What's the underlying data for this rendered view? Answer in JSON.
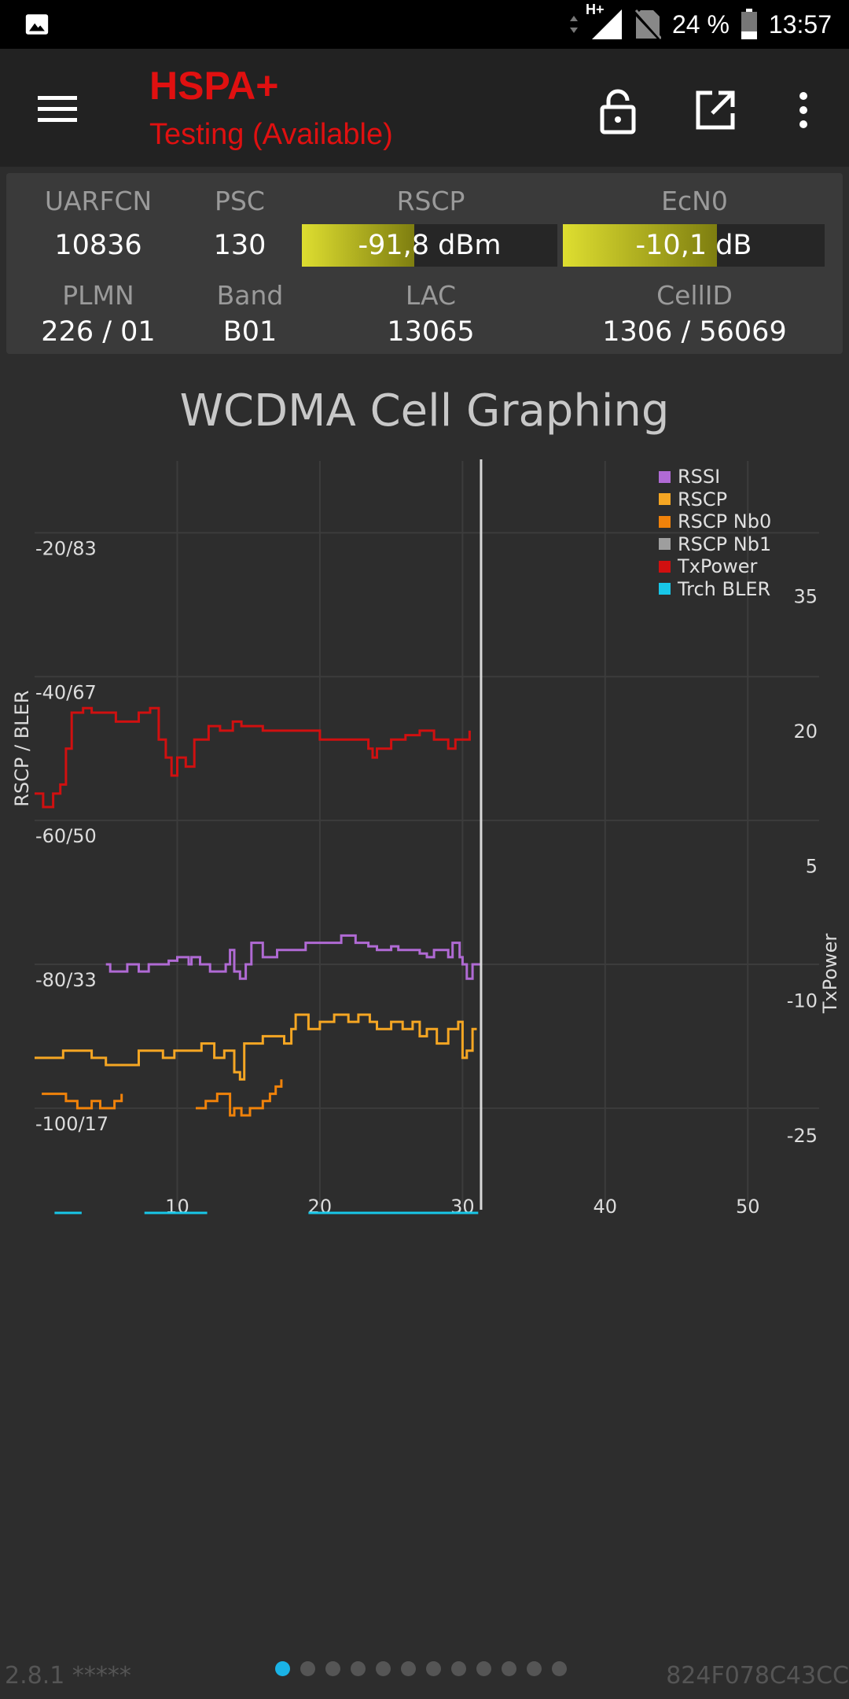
{
  "status_bar": {
    "network_type": "H+",
    "battery_percent": "24 %",
    "time": "13:57",
    "icons": [
      "gallery-icon",
      "data-arrows-icon",
      "signal-icon",
      "no-sim-icon",
      "battery-icon"
    ]
  },
  "toolbar": {
    "tech": "HSPA+",
    "status": "Testing (Available)",
    "icons": [
      "menu-icon",
      "lock-icon",
      "open-external-icon",
      "more-vert-icon"
    ],
    "accent_color": "#e01010"
  },
  "cell_info": {
    "uarfcn_label": "UARFCN",
    "uarfcn_value": "10836",
    "psc_label": "PSC",
    "psc_value": "130",
    "rscp_label": "RSCP",
    "rscp_value": "-91,8 dBm",
    "rscp_fill": 0.44,
    "ecn0_label": "EcN0",
    "ecn0_value": "-10,1 dB",
    "ecn0_fill": 0.59,
    "plmn_label": "PLMN",
    "plmn_value": "226 / 01",
    "band_label": "Band",
    "band_value": "B01",
    "lac_label": "LAC",
    "lac_value": "13065",
    "cellid_label": "CellID",
    "cellid_value": "1306 / 56069"
  },
  "chart": {
    "title": "WCDMA Cell Graphing",
    "left_axis_label": "RSCP / BLER",
    "right_axis_label": "TxPower"
  },
  "chart_data": {
    "type": "line",
    "title": "WCDMA Cell Graphing",
    "ylabel": "RSCP / BLER",
    "y2label": "TxPower",
    "xlim": [
      0,
      55
    ],
    "ylim": [
      -115,
      -10
    ],
    "y2lim": [
      -34,
      50
    ],
    "grid": true,
    "legend_position": "top-right",
    "x_ticks": [
      "10",
      "20",
      "30",
      "40",
      "50"
    ],
    "left_ticks": [
      "-20/83",
      "-40/67",
      "-60/50",
      "-80/33",
      "-100/17"
    ],
    "left_tick_values": [
      -20,
      -40,
      -60,
      -80,
      -100
    ],
    "right_ticks": [
      "-25",
      "-10",
      "5",
      "20",
      "35"
    ],
    "right_tick_values": [
      -25,
      -10,
      5,
      20,
      35
    ],
    "cursor_x": 31.3,
    "series": [
      {
        "name": "RSSI",
        "color": "#b06ad4",
        "axis": "left",
        "points": [
          [
            5,
            -80
          ],
          [
            5.3,
            -81
          ],
          [
            6.5,
            -80
          ],
          [
            7.3,
            -81
          ],
          [
            8,
            -80
          ],
          [
            9,
            -80
          ],
          [
            9.4,
            -79.5
          ],
          [
            10,
            -79
          ],
          [
            10.8,
            -80
          ],
          [
            11,
            -79
          ],
          [
            11.6,
            -80
          ],
          [
            12.3,
            -81
          ],
          [
            13.4,
            -80
          ],
          [
            13.7,
            -78
          ],
          [
            14,
            -81
          ],
          [
            14.4,
            -82
          ],
          [
            14.8,
            -80
          ],
          [
            15.2,
            -77
          ],
          [
            16,
            -79
          ],
          [
            17,
            -78
          ],
          [
            18,
            -78
          ],
          [
            19,
            -77
          ],
          [
            20,
            -77
          ],
          [
            21.5,
            -76
          ],
          [
            22.5,
            -77
          ],
          [
            23,
            -77
          ],
          [
            23.4,
            -77.5
          ],
          [
            24,
            -78
          ],
          [
            25,
            -77.5
          ],
          [
            25.5,
            -78
          ],
          [
            26.5,
            -78
          ],
          [
            27,
            -78.5
          ],
          [
            27.5,
            -79
          ],
          [
            28,
            -78
          ],
          [
            29,
            -79
          ],
          [
            29.3,
            -77
          ],
          [
            29.8,
            -79
          ],
          [
            30,
            -80
          ],
          [
            30.3,
            -82
          ],
          [
            30.7,
            -80
          ],
          [
            31.3,
            -80
          ]
        ]
      },
      {
        "name": "RSCP",
        "color": "#f5a623",
        "axis": "left",
        "points": [
          [
            0,
            -93
          ],
          [
            2,
            -92
          ],
          [
            4,
            -93
          ],
          [
            5,
            -94
          ],
          [
            6.6,
            -94
          ],
          [
            7.3,
            -92
          ],
          [
            9,
            -93
          ],
          [
            9.8,
            -92
          ],
          [
            11,
            -92
          ],
          [
            11.7,
            -91
          ],
          [
            12.6,
            -93
          ],
          [
            13.3,
            -92
          ],
          [
            14,
            -95
          ],
          [
            14.4,
            -96
          ],
          [
            14.7,
            -91
          ],
          [
            16,
            -90
          ],
          [
            17.5,
            -91
          ],
          [
            18,
            -89
          ],
          [
            18.3,
            -87
          ],
          [
            19.2,
            -89
          ],
          [
            20,
            -88
          ],
          [
            21,
            -87
          ],
          [
            22,
            -88
          ],
          [
            22.7,
            -87
          ],
          [
            23.5,
            -88
          ],
          [
            24,
            -89
          ],
          [
            25,
            -88
          ],
          [
            25.8,
            -89
          ],
          [
            26.5,
            -88
          ],
          [
            27,
            -90
          ],
          [
            27.5,
            -89
          ],
          [
            28.2,
            -91
          ],
          [
            29,
            -89
          ],
          [
            29.7,
            -88
          ],
          [
            30,
            -93
          ],
          [
            30.3,
            -92
          ],
          [
            30.7,
            -89
          ],
          [
            31,
            -89
          ]
        ]
      },
      {
        "name": "RSCP Nb0",
        "color": "#f0820a",
        "axis": "left",
        "points": [
          [
            0.5,
            -98
          ],
          [
            1.4,
            -98
          ],
          [
            2.2,
            -99
          ],
          [
            3,
            -100
          ],
          [
            4,
            -99
          ],
          [
            4.6,
            -100
          ],
          [
            5.6,
            -99
          ],
          [
            6.1,
            -98
          ]
        ]
      },
      {
        "name": "RSCP Nb0",
        "color": "#f0820a",
        "axis": "left",
        "points": [
          [
            11.3,
            -100
          ],
          [
            12,
            -99
          ],
          [
            12.8,
            -98
          ],
          [
            13.7,
            -101
          ],
          [
            14,
            -100
          ],
          [
            14.5,
            -101
          ],
          [
            15.1,
            -100
          ],
          [
            16,
            -99
          ],
          [
            16.5,
            -98
          ],
          [
            16.9,
            -97
          ],
          [
            17.3,
            -96
          ]
        ]
      },
      {
        "name": "RSCP Nb1",
        "color": "#9e9e9e",
        "axis": "left",
        "points": []
      },
      {
        "name": "TxPower",
        "color": "#d01010",
        "axis": "right",
        "points": [
          [
            0,
            13
          ],
          [
            0.6,
            11.5
          ],
          [
            1.3,
            13
          ],
          [
            1.8,
            14
          ],
          [
            2.2,
            18
          ],
          [
            2.6,
            22
          ],
          [
            3.4,
            22.5
          ],
          [
            4,
            22
          ],
          [
            5,
            22
          ],
          [
            5.7,
            21
          ],
          [
            6.4,
            21
          ],
          [
            7.3,
            22
          ],
          [
            8.1,
            22.5
          ],
          [
            8.7,
            19
          ],
          [
            9.2,
            17
          ],
          [
            9.6,
            15
          ],
          [
            10,
            17
          ],
          [
            10.6,
            16
          ],
          [
            11.2,
            19
          ],
          [
            12.2,
            20.5
          ],
          [
            13,
            20
          ],
          [
            13.9,
            21
          ],
          [
            14.5,
            20.5
          ],
          [
            16,
            20
          ],
          [
            17,
            20
          ],
          [
            17.4,
            20
          ],
          [
            18,
            20
          ],
          [
            18.4,
            20
          ],
          [
            19,
            20
          ],
          [
            20,
            19
          ],
          [
            21,
            19
          ],
          [
            22,
            19
          ],
          [
            23,
            19
          ],
          [
            23.4,
            18
          ],
          [
            23.7,
            17
          ],
          [
            24,
            18
          ],
          [
            25,
            19
          ],
          [
            26,
            19.5
          ],
          [
            27,
            20
          ],
          [
            28,
            19
          ],
          [
            28.7,
            19
          ],
          [
            29,
            18
          ],
          [
            29.5,
            19
          ],
          [
            30,
            19
          ],
          [
            30.5,
            20
          ]
        ]
      },
      {
        "name": "Trch BLER",
        "color": "#18c7e8",
        "axis": "left",
        "segments": [
          [
            1.4,
            3.3
          ],
          [
            7.7,
            12.1
          ],
          [
            19.2,
            31.1
          ]
        ],
        "value": 0
      }
    ]
  },
  "footer": {
    "version": "2.8.1 *****",
    "device_id": "824F078C43CC",
    "page_count": 12,
    "active_page": 0
  }
}
